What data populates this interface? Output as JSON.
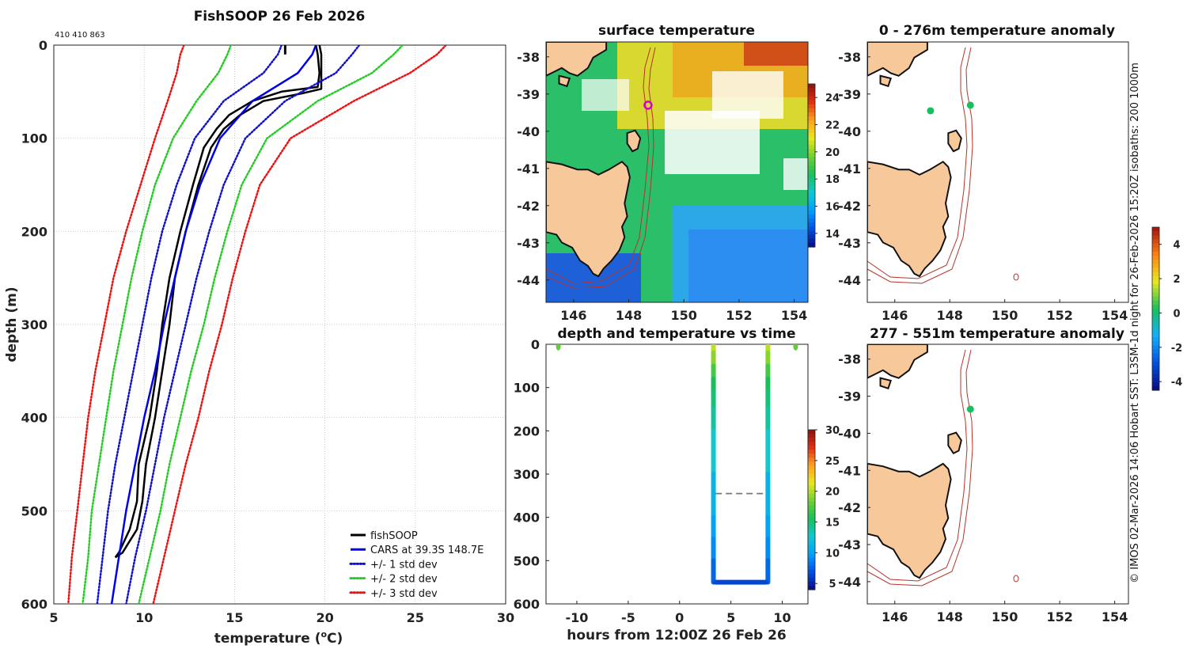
{
  "colors": {
    "land": "#f6c89a",
    "isobath": "#b5332a",
    "fishsoop": "#000000",
    "cars": "#0000ee",
    "std1": "#1010d0",
    "std2": "#22cc22",
    "std3": "#ee1111",
    "grid": "#b8b8b8",
    "marker_green": "#1fc86a",
    "site_magenta": "#d400d4"
  },
  "colormaps": {
    "sst": [
      "#0a0a80",
      "#0050e0",
      "#00a0ff",
      "#10c8d0",
      "#18c05a",
      "#70d030",
      "#e8e820",
      "#ffa020",
      "#e03010",
      "#8a1010"
    ],
    "anomaly": [
      "#0a0a80",
      "#0050e0",
      "#10b0ff",
      "#18c05a",
      "#e8e820",
      "#ff8010",
      "#a01010"
    ]
  },
  "header": {
    "main_title": "FishSOOP 26 Feb 2026",
    "device_id": "410 410 863"
  },
  "profile": {
    "ylabel": "depth (m)",
    "xlabel_main": "temperature (",
    "xlabel_sup": "o",
    "xlabel_end": "C)",
    "x_ticks": [
      "5",
      "10",
      "15",
      "20",
      "25",
      "30"
    ],
    "y_ticks": [
      "0",
      "100",
      "200",
      "300",
      "400",
      "500",
      "600"
    ],
    "legend": [
      {
        "label": "fishSOOP",
        "style": "solid",
        "color": "#000000"
      },
      {
        "label": "CARS at 39.3S 148.7E",
        "style": "solid",
        "color": "#0000ee"
      },
      {
        "label": "+/- 1 std dev",
        "style": "dotted",
        "color": "#1010d0"
      },
      {
        "label": "+/- 2 std dev",
        "style": "dotted",
        "color": "#22cc22"
      },
      {
        "label": "+/- 3 std dev",
        "style": "dotted",
        "color": "#ee1111"
      }
    ]
  },
  "chart_data": [
    {
      "type": "line",
      "title": "FishSOOP 26 Feb 2026",
      "xlabel": "temperature (oC)",
      "ylabel": "depth (m)",
      "xlim": [
        5,
        30
      ],
      "ylim": [
        600,
        0
      ],
      "grid": true,
      "legend_position": "bottom-right",
      "series": [
        {
          "name": "fishSOOP (down)",
          "depth": [
            0,
            10,
            30,
            47,
            52,
            60,
            75,
            90,
            110,
            150,
            200,
            250,
            300,
            350,
            400,
            450,
            490,
            520,
            545,
            550
          ],
          "temp": [
            19.7,
            19.8,
            19.8,
            19.8,
            18.7,
            16.6,
            15.3,
            14.4,
            13.7,
            13.0,
            12.3,
            11.7,
            11.4,
            11.0,
            10.6,
            10.1,
            9.9,
            9.6,
            8.8,
            8.4
          ]
        },
        {
          "name": "fishSOOP (up)",
          "depth": [
            0,
            10,
            30,
            45,
            50,
            60,
            75,
            90,
            110,
            150,
            200,
            250,
            300,
            350,
            400,
            450,
            490,
            520,
            545,
            550
          ],
          "temp": [
            19.5,
            19.6,
            19.7,
            19.6,
            17.6,
            16.0,
            14.7,
            14.0,
            13.3,
            12.7,
            12.0,
            11.4,
            11.0,
            10.7,
            10.3,
            9.7,
            9.6,
            9.2,
            8.6,
            8.4
          ]
        },
        {
          "name": "CARS at 39.3S 148.7E",
          "depth": [
            0,
            10,
            30,
            60,
            100,
            150,
            200,
            250,
            300,
            350,
            400,
            450,
            500,
            550,
            600
          ],
          "temp": [
            19.5,
            19.3,
            18.5,
            16.0,
            14.2,
            13.1,
            12.3,
            11.7,
            11.1,
            10.6,
            10.0,
            9.5,
            9.0,
            8.6,
            8.2
          ]
        },
        {
          "name": "-1 std dev",
          "depth": [
            0,
            10,
            30,
            60,
            100,
            150,
            200,
            250,
            300,
            350,
            400,
            450,
            500,
            550,
            600
          ],
          "temp": [
            17.6,
            17.4,
            16.6,
            14.4,
            12.8,
            11.8,
            11.0,
            10.4,
            9.9,
            9.4,
            8.9,
            8.4,
            8.0,
            7.7,
            7.4
          ]
        },
        {
          "name": "+1 std dev",
          "depth": [
            0,
            10,
            30,
            60,
            100,
            150,
            200,
            250,
            300,
            350,
            400,
            450,
            500,
            550,
            600
          ],
          "temp": [
            21.9,
            21.5,
            20.6,
            17.8,
            15.6,
            14.4,
            13.6,
            12.9,
            12.3,
            11.7,
            11.1,
            10.6,
            10.1,
            9.5,
            9.0
          ]
        },
        {
          "name": "-2 std dev",
          "depth": [
            0,
            10,
            30,
            60,
            100,
            150,
            200,
            250,
            300,
            350,
            400,
            450,
            500,
            550,
            600
          ],
          "temp": [
            14.8,
            14.6,
            14.1,
            12.9,
            11.6,
            10.6,
            9.9,
            9.3,
            8.8,
            8.3,
            7.9,
            7.5,
            7.1,
            6.9,
            6.6
          ]
        },
        {
          "name": "+2 std dev",
          "depth": [
            0,
            10,
            30,
            60,
            100,
            150,
            200,
            250,
            300,
            350,
            400,
            450,
            500,
            550,
            600
          ],
          "temp": [
            24.3,
            23.8,
            22.6,
            19.6,
            16.8,
            15.4,
            14.6,
            13.9,
            13.3,
            12.6,
            12.0,
            11.4,
            10.9,
            10.3,
            9.7
          ]
        },
        {
          "name": "-3 std dev",
          "depth": [
            0,
            10,
            30,
            60,
            100,
            150,
            200,
            250,
            300,
            350,
            400,
            450,
            500,
            550,
            600
          ],
          "temp": [
            12.2,
            12.0,
            11.8,
            11.3,
            10.6,
            9.8,
            9.0,
            8.3,
            7.8,
            7.3,
            6.9,
            6.6,
            6.3,
            6.0,
            5.8
          ]
        },
        {
          "name": "+3 std dev",
          "depth": [
            0,
            10,
            30,
            60,
            100,
            150,
            200,
            250,
            300,
            350,
            400,
            450,
            500,
            550,
            600
          ],
          "temp": [
            26.7,
            26.2,
            24.7,
            21.6,
            18.1,
            16.4,
            15.6,
            14.9,
            14.3,
            13.6,
            13.0,
            12.3,
            11.7,
            11.1,
            10.5
          ]
        }
      ]
    },
    {
      "type": "heatmap",
      "title": "surface temperature",
      "xlim": [
        145,
        154.5
      ],
      "ylim": [
        -44.6,
        -37.6
      ],
      "x_ticks": [
        "146",
        "148",
        "150",
        "152",
        "154"
      ],
      "y_ticks": [
        "-38",
        "-39",
        "-40",
        "-41",
        "-42",
        "-43",
        "-44"
      ],
      "colorbar": {
        "ticks": [
          "14",
          "16",
          "18",
          "20",
          "22",
          "24"
        ],
        "range": [
          13,
          25
        ]
      },
      "site": {
        "lon": 148.7,
        "lat": -39.3
      }
    },
    {
      "type": "scatter",
      "title": "depth and temperature vs time",
      "xlabel": "hours from 12:00Z 26 Feb 26",
      "xlim": [
        -13,
        12.5
      ],
      "ylim": [
        600,
        0
      ],
      "x_ticks": [
        "-10",
        "-5",
        "0",
        "5",
        "10"
      ],
      "y_ticks": [
        "0",
        "100",
        "200",
        "300",
        "400",
        "500",
        "600"
      ],
      "colorbar": {
        "ticks": [
          "5",
          "10",
          "15",
          "20",
          "25",
          "30"
        ],
        "range": [
          4,
          30
        ]
      },
      "dashed_line": {
        "depth": 345,
        "x_start": 3.5,
        "x_end": 8.5
      },
      "points": [
        {
          "hours": -11.8,
          "depth": 5,
          "temp": 18
        },
        {
          "hours": 11.3,
          "depth": 5,
          "temp": 18
        }
      ],
      "casts": [
        {
          "hours": 3.3,
          "depth": [
            0,
            20,
            50,
            80,
            110,
            150,
            200,
            300,
            400,
            450,
            500,
            550
          ],
          "temp": [
            20.5,
            20.0,
            18.0,
            16.0,
            15.2,
            14.5,
            13.5,
            12.0,
            10.5,
            9.7,
            8.5,
            7.0
          ]
        },
        {
          "hours": 8.6,
          "depth": [
            0,
            20,
            50,
            80,
            110,
            150,
            200,
            300,
            400,
            450,
            500,
            550
          ],
          "temp": [
            20.5,
            20.0,
            18.0,
            16.0,
            15.2,
            14.5,
            13.5,
            12.0,
            10.5,
            9.7,
            8.5,
            7.0
          ]
        }
      ],
      "bottom": {
        "hours_start": 3.5,
        "hours_end": 8.4,
        "depth": 550,
        "temp": 6.5
      }
    },
    {
      "type": "scatter",
      "title": "0 - 276m temperature anomaly",
      "xlim": [
        145,
        154.5
      ],
      "ylim": [
        -44.6,
        -37.6
      ],
      "x_ticks": [
        "146",
        "148",
        "150",
        "152",
        "154"
      ],
      "y_ticks": [
        "-38",
        "-39",
        "-40",
        "-41",
        "-42",
        "-43",
        "-44"
      ],
      "points": [
        {
          "lon": 147.3,
          "lat": -39.45,
          "anomaly": 0.2
        },
        {
          "lon": 148.75,
          "lat": -39.3,
          "anomaly": 0.2
        }
      ]
    },
    {
      "type": "scatter",
      "title": "277 - 551m temperature anomaly",
      "xlim": [
        145,
        154.5
      ],
      "ylim": [
        -44.6,
        -37.6
      ],
      "x_ticks": [
        "146",
        "148",
        "150",
        "152",
        "154"
      ],
      "y_ticks": [
        "-38",
        "-39",
        "-40",
        "-41",
        "-42",
        "-43",
        "-44"
      ],
      "colorbar": {
        "ticks": [
          "-4",
          "-2",
          "0",
          "2",
          "4"
        ],
        "range": [
          -4.5,
          5
        ]
      },
      "points": [
        {
          "lon": 148.75,
          "lat": -39.35,
          "anomaly": 0.2
        }
      ]
    }
  ],
  "side_credit": "© IMOS 02-Mar-2026 14:06 Hobart SST: L3SM-1d night for 26-Feb-2026 15:20Z isobaths: 200  1000m"
}
